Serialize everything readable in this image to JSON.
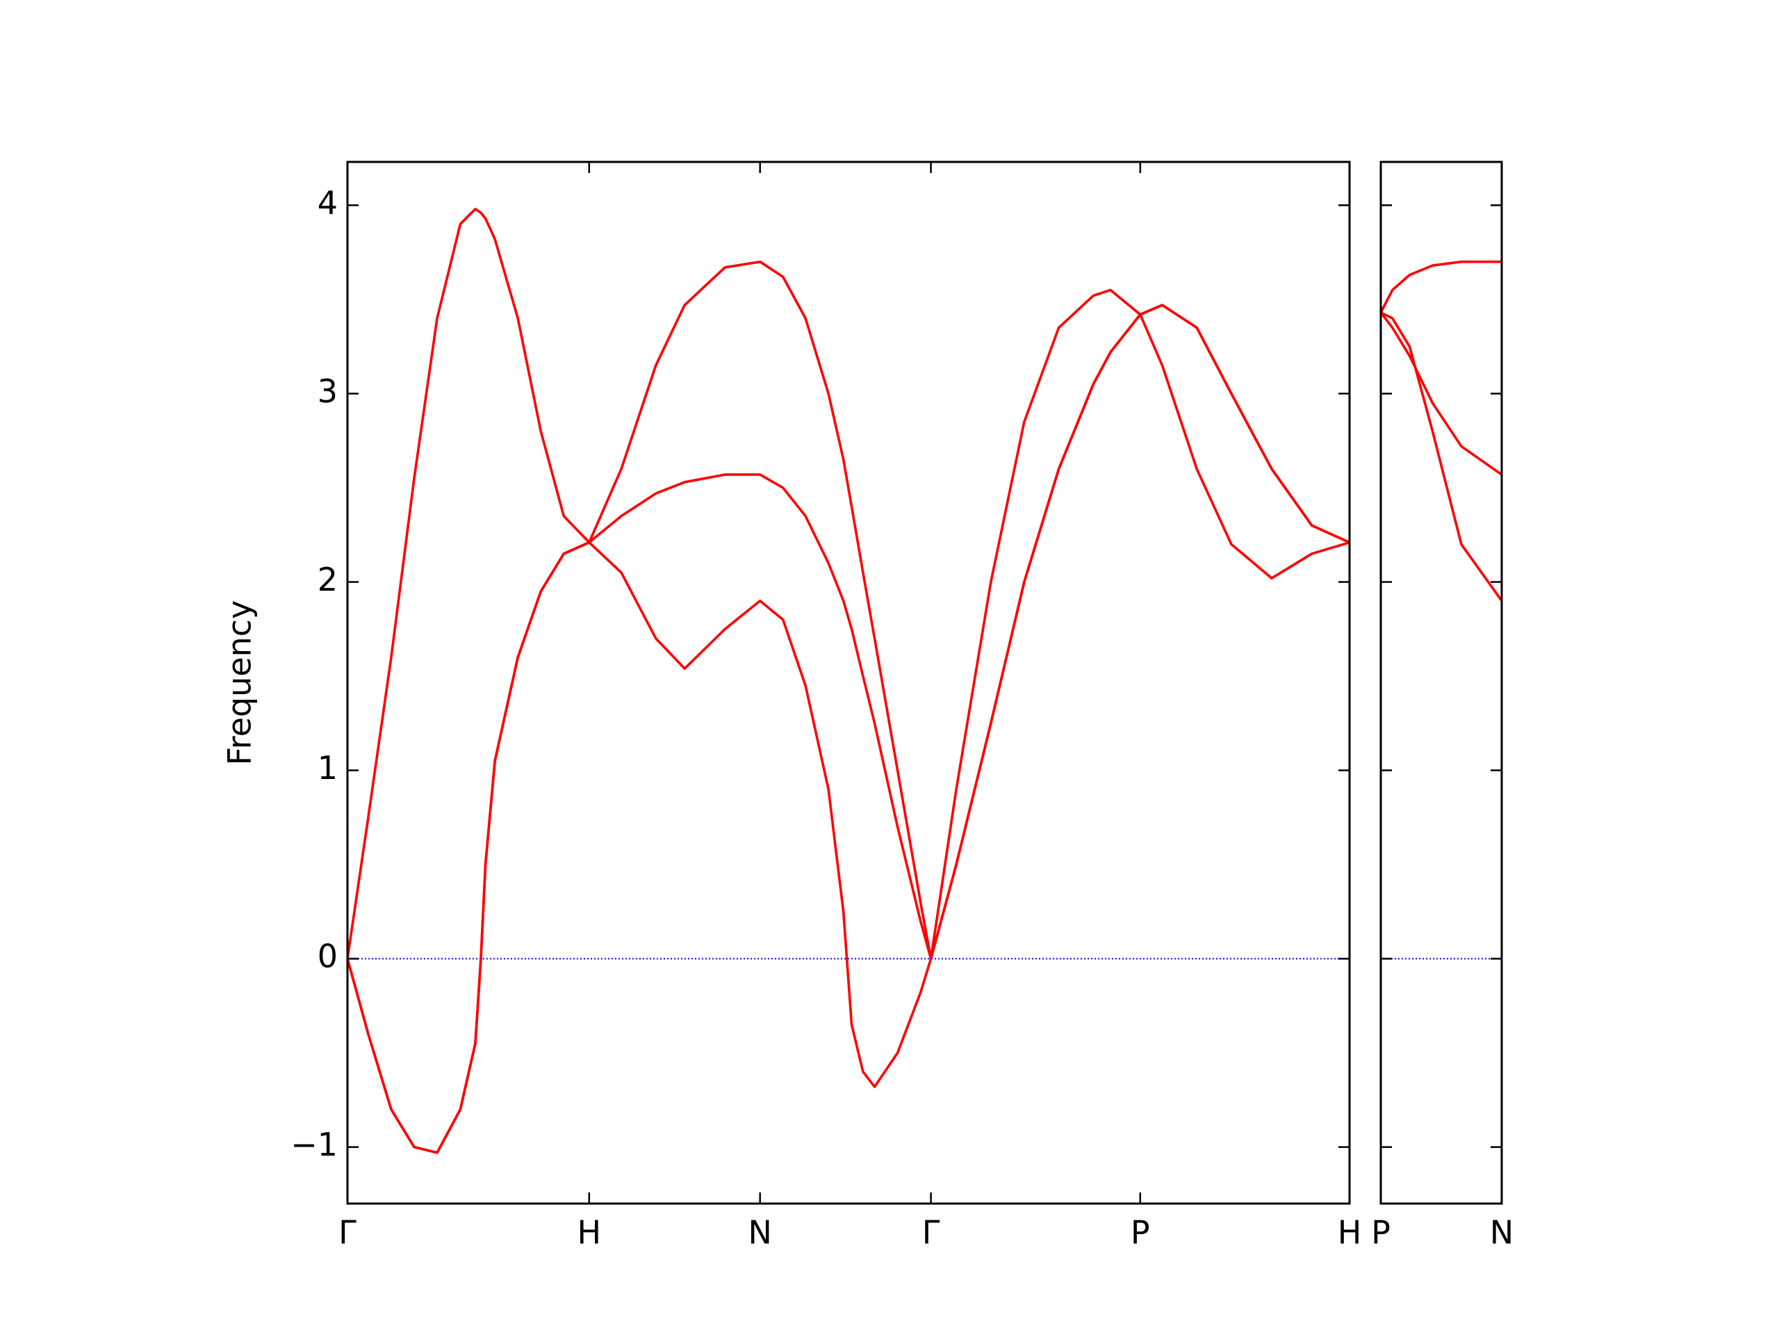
{
  "chart_data": [
    {
      "type": "line",
      "ylabel": "Frequency",
      "x": [
        0,
        0.086,
        0.181,
        0.276,
        0.371,
        0.467,
        0.529,
        0.552,
        0.571,
        0.61,
        0.705,
        0.8,
        0.895,
        1,
        1.133,
        1.276,
        1.395,
        1.562,
        1.707,
        1.802,
        1.895,
        1.99,
        2.052,
        2.086,
        2.133,
        2.181,
        2.276,
        2.371,
        2.414,
        2.519,
        2.662,
        2.8,
        2.943,
        3.086,
        3.157,
        3.28,
        3.371,
        3.514,
        3.657,
        3.824,
        3.99,
        4.146
      ],
      "series": [
        {
          "color": "#ff0000",
          "values": [
            0,
            -0.4,
            -0.8,
            -1.0,
            -1.03,
            -0.8,
            -0.45,
            0,
            0.5,
            1.05,
            1.6,
            1.95,
            2.15,
            2.21,
            2.05,
            1.7,
            1.54,
            1.75,
            1.9,
            1.8,
            1.45,
            0.9,
            0.25,
            -0.35,
            -0.6,
            -0.68,
            -0.5,
            -0.18,
            0,
            0.5,
            1.25,
            2.0,
            2.6,
            3.05,
            3.22,
            3.42,
            3.47,
            3.35,
            3.0,
            2.6,
            2.3,
            2.21
          ]
        },
        {
          "color": "#ff0000",
          "values": [
            0,
            -0.4,
            -0.8,
            -1.0,
            -1.03,
            -0.8,
            -0.45,
            0,
            0.5,
            1.05,
            1.6,
            1.95,
            2.15,
            2.21,
            2.35,
            2.47,
            2.53,
            2.57,
            2.57,
            2.5,
            2.35,
            2.1,
            1.9,
            1.75,
            1.5,
            1.25,
            0.7,
            0.2,
            0,
            0.5,
            1.25,
            2.0,
            2.6,
            3.05,
            3.22,
            3.42,
            3.47,
            3.35,
            3.0,
            2.6,
            2.3,
            2.21
          ]
        },
        {
          "color": "#ff0000",
          "values": [
            0,
            0.75,
            1.6,
            2.55,
            3.4,
            3.9,
            3.98,
            3.96,
            3.93,
            3.82,
            3.4,
            2.8,
            2.35,
            2.21,
            2.6,
            3.15,
            3.47,
            3.67,
            3.7,
            3.62,
            3.4,
            3.0,
            2.65,
            2.4,
            2.05,
            1.7,
            1.0,
            0.3,
            0,
            0.9,
            2.0,
            2.85,
            3.35,
            3.52,
            3.55,
            3.42,
            3.15,
            2.6,
            2.2,
            2.02,
            2.15,
            2.21
          ]
        }
      ],
      "xlim": [
        0,
        4.146
      ],
      "xticks": [
        {
          "value": 0,
          "label": "Γ"
        },
        {
          "value": 1,
          "label": "H"
        },
        {
          "value": 1.707,
          "label": "N"
        },
        {
          "value": 2.414,
          "label": "Γ"
        },
        {
          "value": 3.28,
          "label": "P"
        },
        {
          "value": 4.146,
          "label": "H"
        }
      ],
      "ylim": [
        -1.3,
        4.23
      ],
      "yticks": [
        {
          "value": -1,
          "label": "−1"
        },
        0,
        1,
        2,
        3,
        4
      ],
      "show_ytick_labels": true,
      "hline": 0,
      "hline_color": "#0000ff"
    },
    {
      "type": "line",
      "x": [
        0,
        0.048,
        0.119,
        0.214,
        0.333,
        0.5
      ],
      "series": [
        {
          "color": "#ff0000",
          "values": [
            3.43,
            3.4,
            3.25,
            2.8,
            2.2,
            1.9
          ]
        },
        {
          "color": "#ff0000",
          "values": [
            3.43,
            3.35,
            3.2,
            2.95,
            2.72,
            2.57
          ]
        },
        {
          "color": "#ff0000",
          "values": [
            3.43,
            3.55,
            3.63,
            3.68,
            3.7,
            3.7
          ]
        }
      ],
      "xlim": [
        0,
        0.5
      ],
      "xticks": [
        {
          "value": 0,
          "label": "P"
        },
        {
          "value": 0.5,
          "label": "N"
        }
      ],
      "ylim": [
        -1.3,
        4.23
      ],
      "yticks": [
        -1,
        0,
        1,
        2,
        3,
        4
      ],
      "show_ytick_labels": false,
      "hline": 0,
      "hline_color": "#0000ff"
    }
  ]
}
